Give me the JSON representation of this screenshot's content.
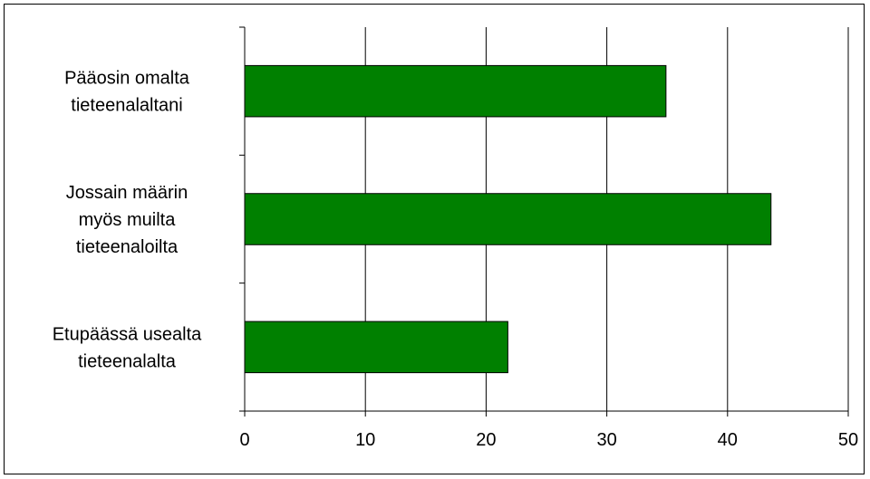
{
  "chart_data": {
    "type": "bar",
    "orientation": "horizontal",
    "categories": [
      [
        "Pääosin omalta",
        "tieteenalaltani"
      ],
      [
        "Jossain määrin",
        "myös muilta",
        "tieteenaloilta"
      ],
      [
        "Etupäässä usealta",
        "tieteenalalta"
      ]
    ],
    "values": [
      34.9,
      43.6,
      21.8
    ],
    "xlim": [
      0,
      50
    ],
    "x_ticks": [
      0,
      10,
      20,
      30,
      40,
      50
    ],
    "grid": "vertical",
    "legend": "none",
    "title": "",
    "xlabel": "",
    "ylabel": "",
    "bar_color": "#008000"
  }
}
